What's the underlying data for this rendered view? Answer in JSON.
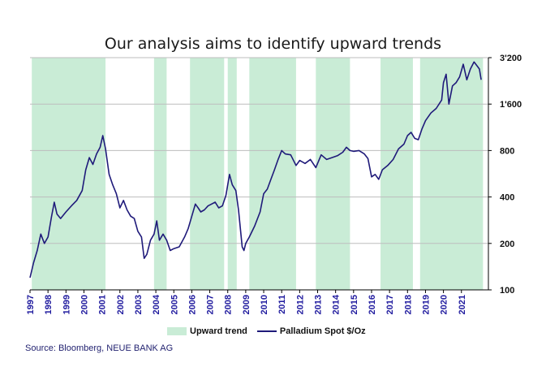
{
  "chart_data": {
    "type": "line",
    "title": "Our analysis aims to identify upward trends",
    "source": "Source: Bloomberg, NEUE BANK AG",
    "y_axis": {
      "scale": "log",
      "range": [
        100,
        3200
      ],
      "ticks": [
        "100",
        "200",
        "400",
        "800",
        "1'600",
        "3'200"
      ],
      "position": "right"
    },
    "x_axis": {
      "range": [
        1997.0,
        2022.5
      ],
      "tick_labels": [
        "1997",
        "1998",
        "1999",
        "2000",
        "2001",
        "2002",
        "2003",
        "2004",
        "2005",
        "2006",
        "2007",
        "2008",
        "2009",
        "2010",
        "2011",
        "2012",
        "2013",
        "2014",
        "2015",
        "2016",
        "2017",
        "2018",
        "2019",
        "2020",
        "2021"
      ],
      "label_color": "#1f1a9e"
    },
    "legend": {
      "placement": "bottom-center",
      "items": [
        {
          "label": "Upward trend",
          "kind": "band",
          "color": "#c9ecd6"
        },
        {
          "label": "Palladium Spot  $/Oz",
          "kind": "line",
          "color": "#1f1a7a"
        }
      ]
    },
    "trend_bands": [
      [
        1997.1,
        2001.2
      ],
      [
        2003.9,
        2004.6
      ],
      [
        2005.9,
        2007.8
      ],
      [
        2008.0,
        2008.5
      ],
      [
        2009.2,
        2011.8
      ],
      [
        2012.9,
        2014.8
      ],
      [
        2016.5,
        2018.3
      ],
      [
        2018.7,
        2022.2
      ]
    ],
    "series": [
      {
        "name": "Palladium Spot  $/Oz",
        "color": "#1f1a7a",
        "x": [
          1997.0,
          1997.2,
          1997.4,
          1997.6,
          1997.8,
          1998.0,
          1998.2,
          1998.35,
          1998.5,
          1998.7,
          1999.0,
          1999.3,
          1999.6,
          1999.9,
          2000.1,
          2000.3,
          2000.5,
          2000.7,
          2000.9,
          2001.05,
          2001.2,
          2001.4,
          2001.6,
          2001.8,
          2002.0,
          2002.2,
          2002.4,
          2002.6,
          2002.8,
          2003.0,
          2003.2,
          2003.35,
          2003.5,
          2003.7,
          2003.9,
          2004.05,
          2004.2,
          2004.4,
          2004.6,
          2004.8,
          2005.0,
          2005.3,
          2005.6,
          2005.8,
          2006.0,
          2006.2,
          2006.35,
          2006.5,
          2006.7,
          2006.9,
          2007.1,
          2007.3,
          2007.5,
          2007.7,
          2007.9,
          2008.1,
          2008.25,
          2008.45,
          2008.6,
          2008.8,
          2008.9,
          2009.0,
          2009.2,
          2009.5,
          2009.8,
          2010.0,
          2010.2,
          2010.4,
          2010.6,
          2010.8,
          2011.0,
          2011.2,
          2011.5,
          2011.8,
          2012.0,
          2012.3,
          2012.6,
          2012.9,
          2013.2,
          2013.5,
          2013.8,
          2014.1,
          2014.4,
          2014.6,
          2014.8,
          2015.0,
          2015.3,
          2015.6,
          2015.8,
          2016.0,
          2016.2,
          2016.4,
          2016.6,
          2016.9,
          2017.2,
          2017.5,
          2017.8,
          2018.0,
          2018.2,
          2018.4,
          2018.6,
          2018.8,
          2019.0,
          2019.3,
          2019.6,
          2019.9,
          2020.0,
          2020.15,
          2020.3,
          2020.5,
          2020.7,
          2020.9,
          2021.1,
          2021.3,
          2021.5,
          2021.7,
          2021.9,
          2022.0,
          2022.1
        ],
        "values": [
          120,
          150,
          180,
          230,
          200,
          220,
          300,
          370,
          310,
          290,
          320,
          350,
          380,
          440,
          600,
          720,
          650,
          760,
          840,
          1000,
          820,
          560,
          480,
          420,
          340,
          380,
          330,
          300,
          290,
          240,
          220,
          160,
          170,
          210,
          230,
          280,
          210,
          230,
          210,
          180,
          185,
          190,
          220,
          250,
          300,
          360,
          340,
          320,
          330,
          350,
          360,
          370,
          340,
          350,
          410,
          560,
          480,
          440,
          330,
          190,
          180,
          200,
          220,
          260,
          320,
          420,
          450,
          520,
          600,
          700,
          800,
          760,
          750,
          640,
          690,
          660,
          700,
          620,
          750,
          700,
          720,
          740,
          780,
          840,
          800,
          790,
          800,
          760,
          710,
          540,
          560,
          520,
          600,
          640,
          700,
          820,
          880,
          1000,
          1050,
          960,
          940,
          1100,
          1250,
          1400,
          1500,
          1700,
          2200,
          2500,
          1600,
          2100,
          2200,
          2400,
          2900,
          2300,
          2700,
          3000,
          2800,
          2700,
          2300
        ]
      }
    ]
  }
}
